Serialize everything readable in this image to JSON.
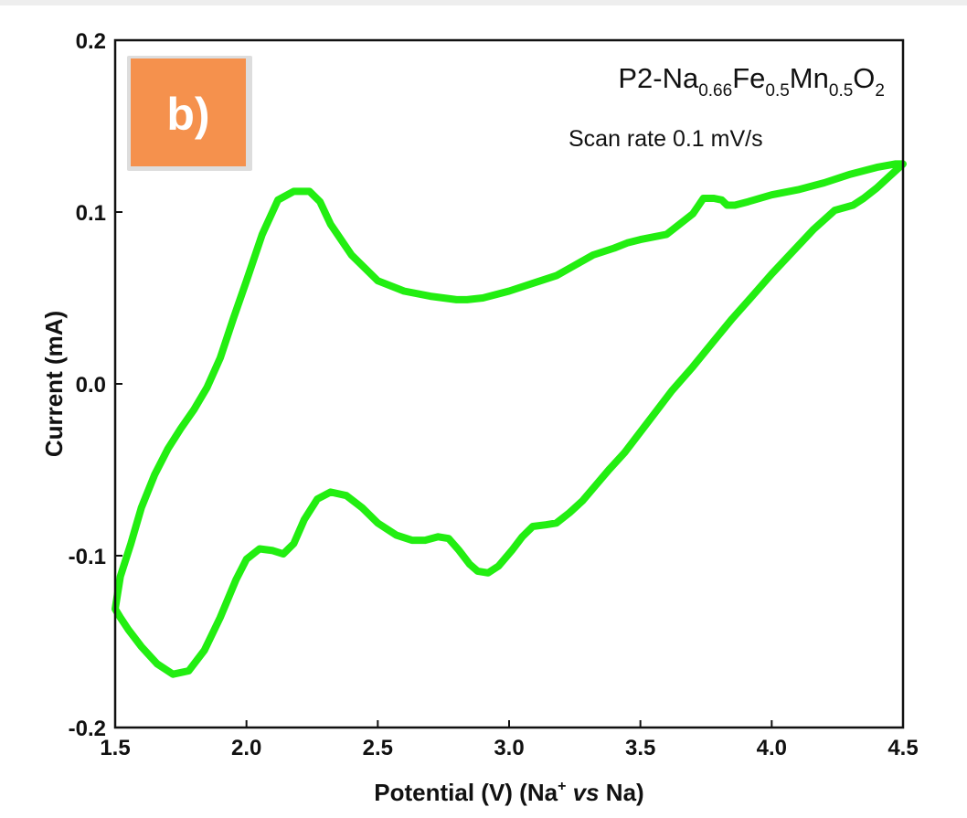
{
  "chart_data": {
    "type": "line",
    "panel_label": "b)",
    "annotation": {
      "formula_parts": [
        {
          "text": "P2-Na",
          "sub": false
        },
        {
          "text": "0.66",
          "sub": true
        },
        {
          "text": "Fe",
          "sub": false
        },
        {
          "text": "0.5",
          "sub": true
        },
        {
          "text": "Mn",
          "sub": false
        },
        {
          "text": "0.5",
          "sub": true
        },
        {
          "text": "O",
          "sub": false
        },
        {
          "text": "2",
          "sub": true
        }
      ],
      "scan_rate": "Scan rate 0.1 mV/s"
    },
    "xlabel_parts": [
      {
        "text": "Potential (V) (Na",
        "style": "normal"
      },
      {
        "text": "+",
        "style": "sup"
      },
      {
        "text": " ",
        "style": "normal"
      },
      {
        "text": "vs",
        "style": "italic"
      },
      {
        "text": " Na)",
        "style": "normal"
      }
    ],
    "ylabel": "Current (mA)",
    "xlim": [
      1.5,
      4.5
    ],
    "ylim": [
      -0.2,
      0.2
    ],
    "xticks": [
      "1.5",
      "2.0",
      "2.5",
      "3.0",
      "3.5",
      "4.0",
      "4.5"
    ],
    "yticks": [
      "-0.2",
      "-0.1",
      "0.0",
      "0.1",
      "0.2"
    ],
    "grid": false,
    "colors": {
      "line": "#22ee11",
      "badge": "#f5914d",
      "axis": "#111111"
    },
    "series": [
      {
        "x": [
          1.5,
          1.52,
          1.55,
          1.6,
          1.66,
          1.72,
          1.78,
          1.84,
          1.9,
          1.96,
          2.0,
          2.05,
          2.1,
          2.14,
          2.18,
          2.22,
          2.27,
          2.32,
          2.38,
          2.44,
          2.5,
          2.57,
          2.63,
          2.68,
          2.73,
          2.77,
          2.81,
          2.85,
          2.88,
          2.92,
          2.96,
          3.01,
          3.05,
          3.09,
          3.14,
          3.18,
          3.23,
          3.28,
          3.33,
          3.38,
          3.44,
          3.5,
          3.56,
          3.62,
          3.7,
          3.78,
          3.85,
          3.92,
          4.0,
          4.08,
          4.16,
          4.24,
          4.31,
          4.35,
          4.4,
          4.45,
          4.5,
          4.47,
          4.4,
          4.3,
          4.2,
          4.1,
          4.0,
          3.91,
          3.86,
          3.83,
          3.81,
          3.78,
          3.74,
          3.7,
          3.6,
          3.5,
          3.45,
          3.4,
          3.32,
          3.25,
          3.18,
          3.1,
          3.0,
          2.9,
          2.84,
          2.8,
          2.7,
          2.6,
          2.5,
          2.4,
          2.32,
          2.28,
          2.24,
          2.18,
          2.12,
          2.06,
          2.0,
          1.95,
          1.9,
          1.85,
          1.8,
          1.75,
          1.7,
          1.65,
          1.6,
          1.56,
          1.52,
          1.5
        ],
        "y": [
          -0.131,
          -0.136,
          -0.143,
          -0.153,
          -0.163,
          -0.169,
          -0.167,
          -0.155,
          -0.136,
          -0.114,
          -0.102,
          -0.096,
          -0.097,
          -0.099,
          -0.093,
          -0.079,
          -0.067,
          -0.063,
          -0.065,
          -0.072,
          -0.081,
          -0.088,
          -0.091,
          -0.091,
          -0.089,
          -0.09,
          -0.097,
          -0.105,
          -0.109,
          -0.11,
          -0.106,
          -0.097,
          -0.089,
          -0.083,
          -0.082,
          -0.081,
          -0.075,
          -0.068,
          -0.059,
          -0.05,
          -0.04,
          -0.028,
          -0.016,
          -0.004,
          0.01,
          0.025,
          0.038,
          0.05,
          0.064,
          0.077,
          0.09,
          0.101,
          0.104,
          0.108,
          0.114,
          0.121,
          0.128,
          0.128,
          0.126,
          0.122,
          0.117,
          0.113,
          0.11,
          0.106,
          0.104,
          0.104,
          0.107,
          0.108,
          0.108,
          0.099,
          0.087,
          0.084,
          0.082,
          0.079,
          0.075,
          0.069,
          0.063,
          0.059,
          0.054,
          0.05,
          0.049,
          0.049,
          0.051,
          0.054,
          0.06,
          0.075,
          0.093,
          0.106,
          0.112,
          0.112,
          0.107,
          0.087,
          0.06,
          0.038,
          0.015,
          -0.002,
          -0.015,
          -0.026,
          -0.038,
          -0.053,
          -0.072,
          -0.093,
          -0.112,
          -0.131
        ]
      }
    ]
  }
}
